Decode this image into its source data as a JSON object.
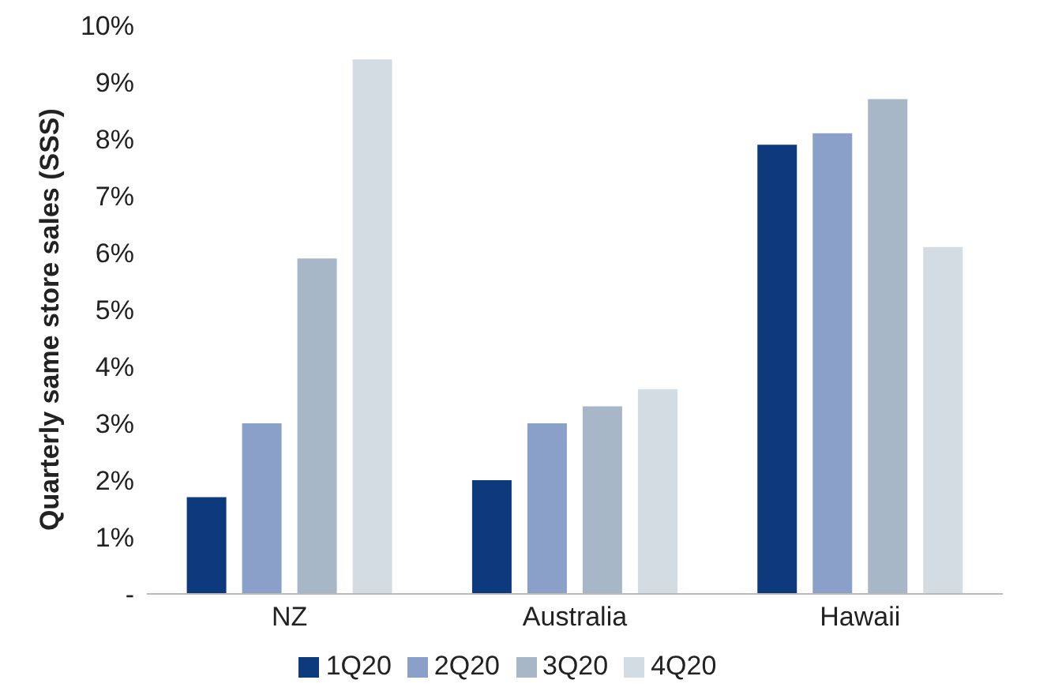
{
  "chart_data": {
    "type": "bar",
    "ylabel": "Quarterly same store sales (SSS)",
    "categories": [
      "NZ",
      "Australia",
      "Hawaii"
    ],
    "series": [
      {
        "name": "1Q20",
        "color": "#0c3a7d",
        "values": [
          1.7,
          2.0,
          7.9
        ]
      },
      {
        "name": "2Q20",
        "color": "#8aa0c8",
        "values": [
          3.0,
          3.0,
          8.1
        ]
      },
      {
        "name": "3Q20",
        "color": "#a7b7c7",
        "values": [
          5.9,
          3.3,
          8.7
        ]
      },
      {
        "name": "4Q20",
        "color": "#d3dce3",
        "values": [
          9.4,
          3.6,
          6.1
        ]
      }
    ],
    "ylim": [
      0,
      10
    ],
    "yticks": [
      {
        "value": 0,
        "label": "-"
      },
      {
        "value": 1,
        "label": "1%"
      },
      {
        "value": 2,
        "label": "2%"
      },
      {
        "value": 3,
        "label": "3%"
      },
      {
        "value": 4,
        "label": "4%"
      },
      {
        "value": 5,
        "label": "5%"
      },
      {
        "value": 6,
        "label": "6%"
      },
      {
        "value": 7,
        "label": "7%"
      },
      {
        "value": 8,
        "label": "8%"
      },
      {
        "value": 9,
        "label": "9%"
      },
      {
        "value": 10,
        "label": "10%"
      }
    ],
    "grid": false,
    "legend": "bottom"
  }
}
